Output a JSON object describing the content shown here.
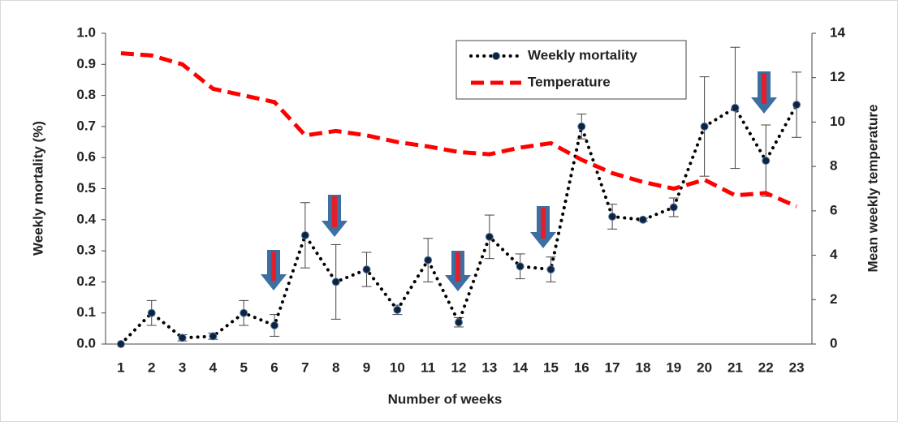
{
  "chart_data": {
    "type": "line",
    "x_label": "Number of weeks",
    "y_label": "Weekly mortality (%)",
    "y2_label": "Mean weekly  temperature",
    "categories": [
      "1",
      "2",
      "3",
      "4",
      "5",
      "6",
      "7",
      "8",
      "9",
      "10",
      "11",
      "12",
      "13",
      "14",
      "15",
      "16",
      "17",
      "18",
      "19",
      "20",
      "21",
      "22",
      "23"
    ],
    "series": [
      {
        "name": "Weekly mortality",
        "color": "#000000",
        "values": [
          0.0,
          0.1,
          0.02,
          0.025,
          0.1,
          0.06,
          0.35,
          0.2,
          0.24,
          0.11,
          0.27,
          0.07,
          0.345,
          0.25,
          0.24,
          0.7,
          0.41,
          0.4,
          0.44,
          0.7,
          0.76,
          0.59,
          0.77
        ],
        "errors": [
          0,
          0.04,
          0.01,
          0.01,
          0.04,
          0.035,
          0.105,
          0.12,
          0.055,
          0.015,
          0.07,
          0.015,
          0.07,
          0.04,
          0.04,
          0.04,
          0.04,
          0.005,
          0.03,
          0.16,
          0.195,
          0.115,
          0.105
        ]
      },
      {
        "name": "Temperature",
        "color": "#ff0000",
        "axis": "y2",
        "values": [
          13.1,
          13.0,
          12.6,
          11.5,
          11.2,
          10.9,
          9.4,
          9.6,
          9.4,
          9.1,
          8.9,
          8.65,
          8.55,
          8.85,
          9.05,
          8.3,
          7.7,
          7.3,
          7.0,
          7.4,
          6.7,
          6.8,
          6.2
        ]
      }
    ],
    "ylim": [
      0,
      1
    ],
    "yticks": [
      {
        "value": 0,
        "label": "0.0"
      },
      {
        "value": 0.1,
        "label": "0.1"
      },
      {
        "value": 0.2,
        "label": "0.2"
      },
      {
        "value": 0.3,
        "label": "0.3"
      },
      {
        "value": 0.4,
        "label": "0.4"
      },
      {
        "value": 0.5,
        "label": "0.5"
      },
      {
        "value": 0.6,
        "label": "0.6"
      },
      {
        "value": 0.7,
        "label": "0.7"
      },
      {
        "value": 0.8,
        "label": "0.8"
      },
      {
        "value": 0.9,
        "label": "0.9"
      },
      {
        "value": 1,
        "label": "1.0"
      }
    ],
    "y2lim": [
      0,
      14
    ],
    "y2ticks": [
      0,
      2,
      4,
      6,
      8,
      10,
      12,
      14
    ],
    "grid": false,
    "legend": "top-right"
  }
}
